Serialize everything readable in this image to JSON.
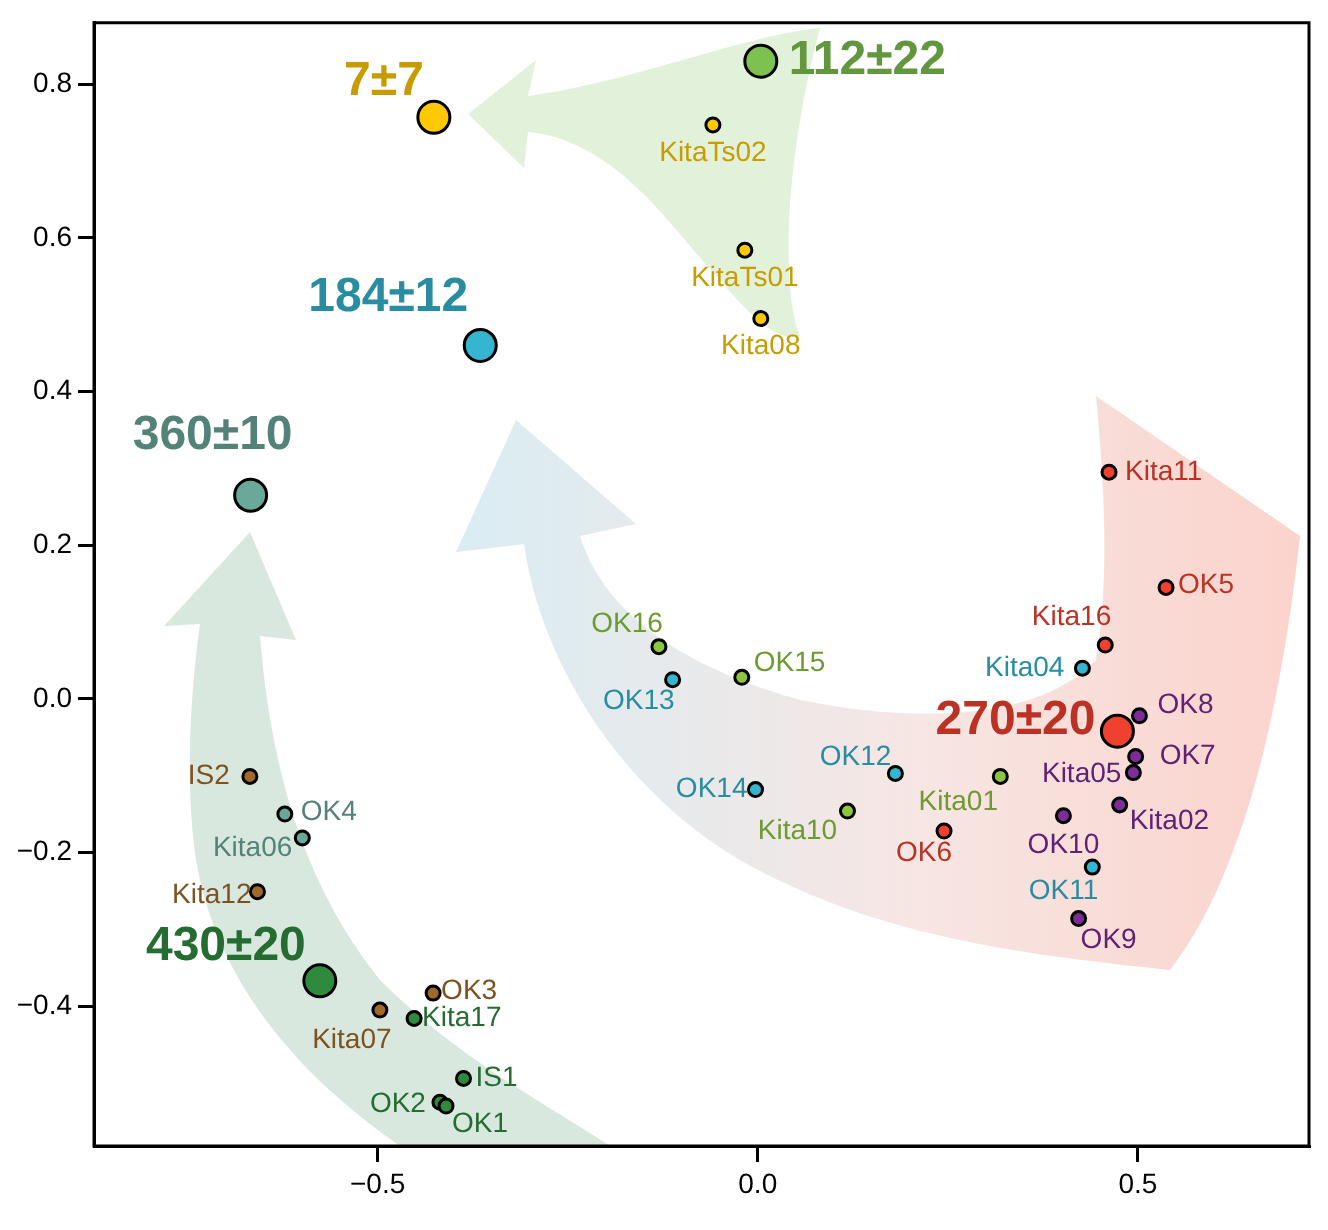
{
  "chart_data": {
    "type": "scatter",
    "marker": "circle",
    "xlim": [
      -0.873,
      0.725
    ],
    "ylim": [
      -0.582,
      0.88
    ],
    "xticks": [
      {
        "value": -0.5,
        "label": "−0.5"
      },
      {
        "value": 0,
        "label": "0.0"
      },
      {
        "value": 0.5,
        "label": "0.5"
      }
    ],
    "yticks": [
      {
        "value": -0.4,
        "label": "−0.4"
      },
      {
        "value": -0.2,
        "label": "−0.2"
      },
      {
        "value": 0,
        "label": "0.0"
      },
      {
        "value": 0.2,
        "label": "0.2"
      },
      {
        "value": 0.4,
        "label": "0.4"
      },
      {
        "value": 0.6,
        "label": "0.6"
      },
      {
        "value": 0.8,
        "label": "0.8"
      }
    ],
    "series": [
      {
        "color": "#ffc800",
        "x": [
          -0.059,
          -0.017,
          0.004
        ],
        "values": [
          0.747,
          0.584,
          0.495
        ]
      },
      {
        "color": "#f04030",
        "x": [
          0.462,
          0.537,
          0.457,
          0.245
        ],
        "values": [
          0.295,
          0.145,
          0.07,
          -0.172
        ]
      },
      {
        "color": "#35b5cf",
        "x": [
          0.427,
          0.44,
          0.181,
          -0.003,
          -0.112
        ],
        "values": [
          0.04,
          -0.219,
          -0.097,
          -0.118,
          0.025
        ]
      },
      {
        "color": "#7b2c96",
        "x": [
          0.502,
          0.497,
          0.494,
          0.476,
          0.402,
          0.422
        ],
        "values": [
          -0.022,
          -0.075,
          -0.096,
          -0.138,
          -0.152,
          -0.286
        ]
      },
      {
        "color": "#8cc63f",
        "x": [
          0.319,
          0.118,
          -0.021,
          -0.13
        ],
        "values": [
          -0.101,
          -0.146,
          0.028,
          0.068
        ]
      },
      {
        "color": "#a0692a",
        "x": [
          -0.668,
          -0.658,
          -0.497,
          -0.427
        ],
        "values": [
          -0.101,
          -0.251,
          -0.405,
          -0.383
        ]
      },
      {
        "color": "#6aa89a",
        "x": [
          -0.622,
          -0.599
        ],
        "values": [
          -0.15,
          -0.181
        ]
      },
      {
        "color": "#2e8b3e",
        "x": [
          -0.452,
          -0.387,
          -0.418,
          -0.41
        ],
        "values": [
          -0.416,
          -0.494,
          -0.525,
          -0.53
        ]
      },
      {
        "colors": [
          "#ffc800",
          "#7dc24f",
          "#35b5cf",
          "#6aa89a",
          "#f04030",
          "#2e8b3e"
        ],
        "x": [
          -0.426,
          0.004,
          -0.365,
          -0.667,
          0.473,
          -0.576
        ],
        "values": [
          0.757,
          0.83,
          0.46,
          0.265,
          -0.042,
          -0.367
        ]
      }
    ],
    "annotations": [
      {
        "text": "7±7",
        "x": -0.426,
        "y": 0.757
      },
      {
        "text": "112±22",
        "x": 0.004,
        "y": 0.83
      },
      {
        "text": "184±12",
        "x": -0.365,
        "y": 0.46
      },
      {
        "text": "360±10",
        "x": -0.667,
        "y": 0.265
      },
      {
        "text": "270±20",
        "x": 0.473,
        "y": -0.042
      },
      {
        "text": "430±20",
        "x": -0.576,
        "y": -0.367
      },
      {
        "text": "KitaTs02",
        "x": -0.059,
        "y": 0.747
      },
      {
        "text": "KitaTs01",
        "x": -0.017,
        "y": 0.584
      },
      {
        "text": "Kita08",
        "x": 0.004,
        "y": 0.495
      },
      {
        "text": "Kita11",
        "x": 0.462,
        "y": 0.295
      },
      {
        "text": "OK5",
        "x": 0.537,
        "y": 0.145
      },
      {
        "text": "Kita16",
        "x": 0.457,
        "y": 0.07
      },
      {
        "text": "Kita04",
        "x": 0.427,
        "y": 0.04
      },
      {
        "text": "OK8",
        "x": 0.502,
        "y": -0.022
      },
      {
        "text": "OK7",
        "x": 0.497,
        "y": -0.075
      },
      {
        "text": "Kita05",
        "x": 0.494,
        "y": -0.096
      },
      {
        "text": "Kita02",
        "x": 0.476,
        "y": -0.138
      },
      {
        "text": "OK10",
        "x": 0.402,
        "y": -0.152
      },
      {
        "text": "OK11",
        "x": 0.44,
        "y": -0.219
      },
      {
        "text": "OK9",
        "x": 0.422,
        "y": -0.286
      },
      {
        "text": "OK6",
        "x": 0.245,
        "y": -0.172
      },
      {
        "text": "Kita01",
        "x": 0.319,
        "y": -0.101
      },
      {
        "text": "OK12",
        "x": 0.181,
        "y": -0.097
      },
      {
        "text": "Kita10",
        "x": 0.118,
        "y": -0.146
      },
      {
        "text": "OK14",
        "x": -0.003,
        "y": -0.118
      },
      {
        "text": "OK15",
        "x": -0.021,
        "y": 0.028
      },
      {
        "text": "OK16",
        "x": -0.13,
        "y": 0.068
      },
      {
        "text": "OK13",
        "x": -0.112,
        "y": 0.025
      },
      {
        "text": "IS2",
        "x": -0.668,
        "y": -0.101
      },
      {
        "text": "OK4",
        "x": -0.622,
        "y": -0.15
      },
      {
        "text": "Kita06",
        "x": -0.599,
        "y": -0.181
      },
      {
        "text": "Kita12",
        "x": -0.658,
        "y": -0.251
      },
      {
        "text": "Kita07",
        "x": -0.497,
        "y": -0.405
      },
      {
        "text": "OK3",
        "x": -0.427,
        "y": -0.383
      },
      {
        "text": "Kita17",
        "x": -0.452,
        "y": -0.416
      },
      {
        "text": "IS1",
        "x": -0.387,
        "y": -0.494
      },
      {
        "text": "OK2",
        "x": -0.418,
        "y": -0.525
      },
      {
        "text": "OK1",
        "x": -0.41,
        "y": -0.53
      }
    ]
  }
}
